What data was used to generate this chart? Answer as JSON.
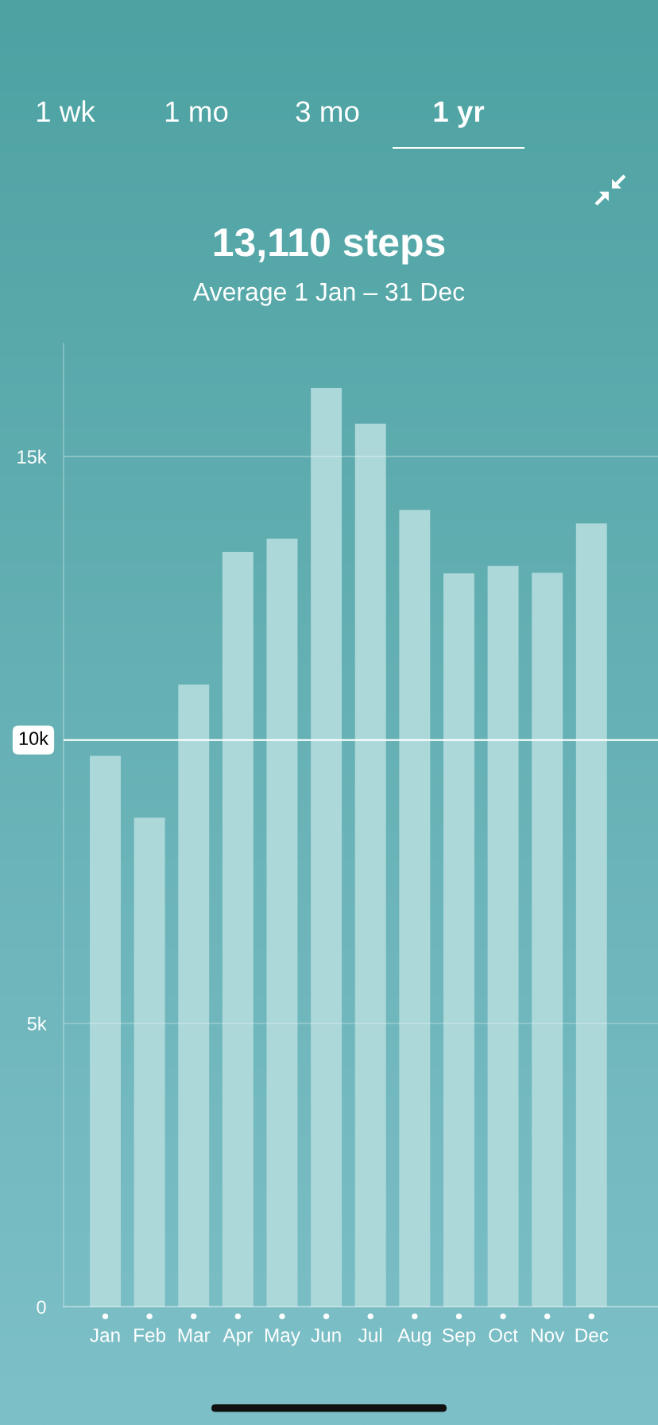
{
  "chart_data": {
    "type": "bar",
    "title": "13,110 steps",
    "subtitle": "Average 1 Jan – 31 Dec",
    "categories": [
      "Jan",
      "Feb",
      "Mar",
      "Apr",
      "May",
      "Jun",
      "Jul",
      "Aug",
      "Sep",
      "Oct",
      "Nov",
      "Dec"
    ],
    "values": [
      9720,
      8630,
      10980,
      13320,
      13550,
      16210,
      15580,
      14060,
      12940,
      13070,
      12950,
      13820
    ],
    "color": "#acd8da",
    "ylim": [
      0,
      17000
    ],
    "yticks": [
      0,
      {
        "value": 5000,
        "label": "5k"
      },
      {
        "value": 15000,
        "label": "15k"
      }
    ],
    "grid": "y",
    "ref_lines": [
      {
        "axis": "y",
        "value": 10000,
        "label": "10k",
        "color": "#ffffff"
      }
    ],
    "annotations": [
      "1 wk",
      "1 mo",
      "3 mo",
      "1 yr"
    ]
  }
}
